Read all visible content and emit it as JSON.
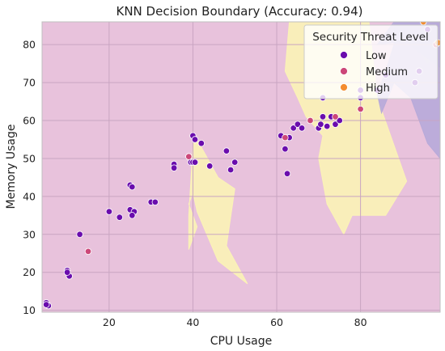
{
  "chart_data": {
    "type": "scatter",
    "title": "KNN Decision Boundary (Accuracy: 0.94)",
    "xlabel": "CPU Usage",
    "ylabel": "Memory Usage",
    "xlim": [
      4,
      99
    ],
    "ylim": [
      9.5,
      86
    ],
    "xticks": [
      20,
      40,
      60,
      80
    ],
    "yticks": [
      10,
      20,
      30,
      40,
      50,
      60,
      70,
      80
    ],
    "grid": true,
    "legend": {
      "title": "Security Threat Level",
      "placement": "top-right"
    },
    "colors": {
      "background_region": "#e8c2dc",
      "yellow_region": "#fbf3b6",
      "purple_region": "#b7aad9",
      "grid": "#c9a5c2",
      "Low": "#6a0dad",
      "Medium": "#cc4778",
      "High": "#f48c2e"
    },
    "regions": [
      {
        "class": "Medium",
        "color": "#fbf3b6",
        "points": [
          [
            75,
            86
          ],
          [
            82,
            86
          ],
          [
            84,
            66
          ],
          [
            91,
            44
          ],
          [
            86,
            35
          ],
          [
            78,
            35
          ],
          [
            76,
            30
          ],
          [
            72,
            38
          ],
          [
            70,
            50
          ],
          [
            71,
            56
          ],
          [
            67,
            61
          ],
          [
            65,
            66
          ],
          [
            62,
            73
          ],
          [
            63,
            86
          ]
        ]
      },
      {
        "class": "Medium",
        "color": "#fbf3b6",
        "points": [
          [
            40,
            57
          ],
          [
            46,
            45
          ],
          [
            50,
            42
          ],
          [
            48,
            27
          ],
          [
            53,
            17
          ],
          [
            46,
            23
          ],
          [
            41,
            36
          ],
          [
            40,
            41
          ],
          [
            39,
            38
          ],
          [
            41,
            32
          ],
          [
            39,
            26
          ],
          [
            39,
            35
          ],
          [
            40,
            53
          ]
        ]
      },
      {
        "class": "Medium",
        "color": "#fbf3b6",
        "points": [
          [
            96,
            86
          ],
          [
            99,
            86
          ],
          [
            99,
            80
          ],
          [
            96,
            75
          ],
          [
            93,
            80
          ]
        ]
      },
      {
        "class": "High",
        "color": "#b7aad9",
        "points": [
          [
            88,
            86
          ],
          [
            99,
            86
          ],
          [
            99,
            50
          ],
          [
            96,
            54
          ],
          [
            92,
            66
          ],
          [
            88,
            70
          ],
          [
            85,
            62
          ],
          [
            84,
            67
          ],
          [
            86,
            73
          ],
          [
            88,
            80
          ]
        ]
      },
      {
        "class": "High",
        "color": "#b7aad9",
        "points": [
          [
            84,
            80
          ],
          [
            88,
            86
          ],
          [
            99,
            86
          ],
          [
            99,
            74
          ],
          [
            94,
            78
          ],
          [
            91,
            81
          ]
        ]
      }
    ],
    "series": [
      {
        "name": "Low",
        "points": [
          [
            5,
            12
          ],
          [
            5.5,
            11.2
          ],
          [
            5,
            11.5
          ],
          [
            10,
            20.5
          ],
          [
            10.5,
            19
          ],
          [
            10,
            20
          ],
          [
            13,
            30
          ],
          [
            20,
            36
          ],
          [
            22.5,
            34.5
          ],
          [
            25,
            43
          ],
          [
            25.5,
            42.5
          ],
          [
            25,
            36.5
          ],
          [
            26,
            36
          ],
          [
            25.5,
            35
          ],
          [
            30,
            38.5
          ],
          [
            31,
            38.5
          ],
          [
            35.5,
            48.5
          ],
          [
            35.5,
            47.5
          ],
          [
            39.5,
            49
          ],
          [
            40,
            56
          ],
          [
            40.5,
            55
          ],
          [
            40,
            49
          ],
          [
            40.5,
            49
          ],
          [
            42,
            54
          ],
          [
            44,
            48
          ],
          [
            48,
            52
          ],
          [
            49,
            47
          ],
          [
            50,
            49
          ],
          [
            61,
            56
          ],
          [
            62,
            52.5
          ],
          [
            62.5,
            46
          ],
          [
            63,
            55.5
          ],
          [
            64,
            58
          ],
          [
            65,
            59
          ],
          [
            66,
            58
          ],
          [
            70,
            58
          ],
          [
            70.5,
            59
          ],
          [
            71,
            61
          ],
          [
            71,
            66
          ],
          [
            72,
            58.5
          ],
          [
            73,
            61
          ],
          [
            74,
            59
          ],
          [
            75,
            60
          ],
          [
            80,
            66
          ],
          [
            80,
            68
          ],
          [
            84,
            68
          ],
          [
            86,
            72
          ],
          [
            93,
            70
          ],
          [
            94,
            73
          ],
          [
            96,
            84
          ]
        ]
      },
      {
        "name": "Medium",
        "points": [
          [
            15,
            25.5
          ],
          [
            39,
            50.5
          ],
          [
            62,
            55.5
          ],
          [
            68,
            60
          ],
          [
            74,
            61
          ],
          [
            80,
            63
          ],
          [
            95,
            86
          ],
          [
            98,
            80
          ]
        ]
      },
      {
        "name": "High",
        "points": [
          [
            95,
            86
          ],
          [
            98.5,
            80.5
          ]
        ]
      }
    ]
  }
}
